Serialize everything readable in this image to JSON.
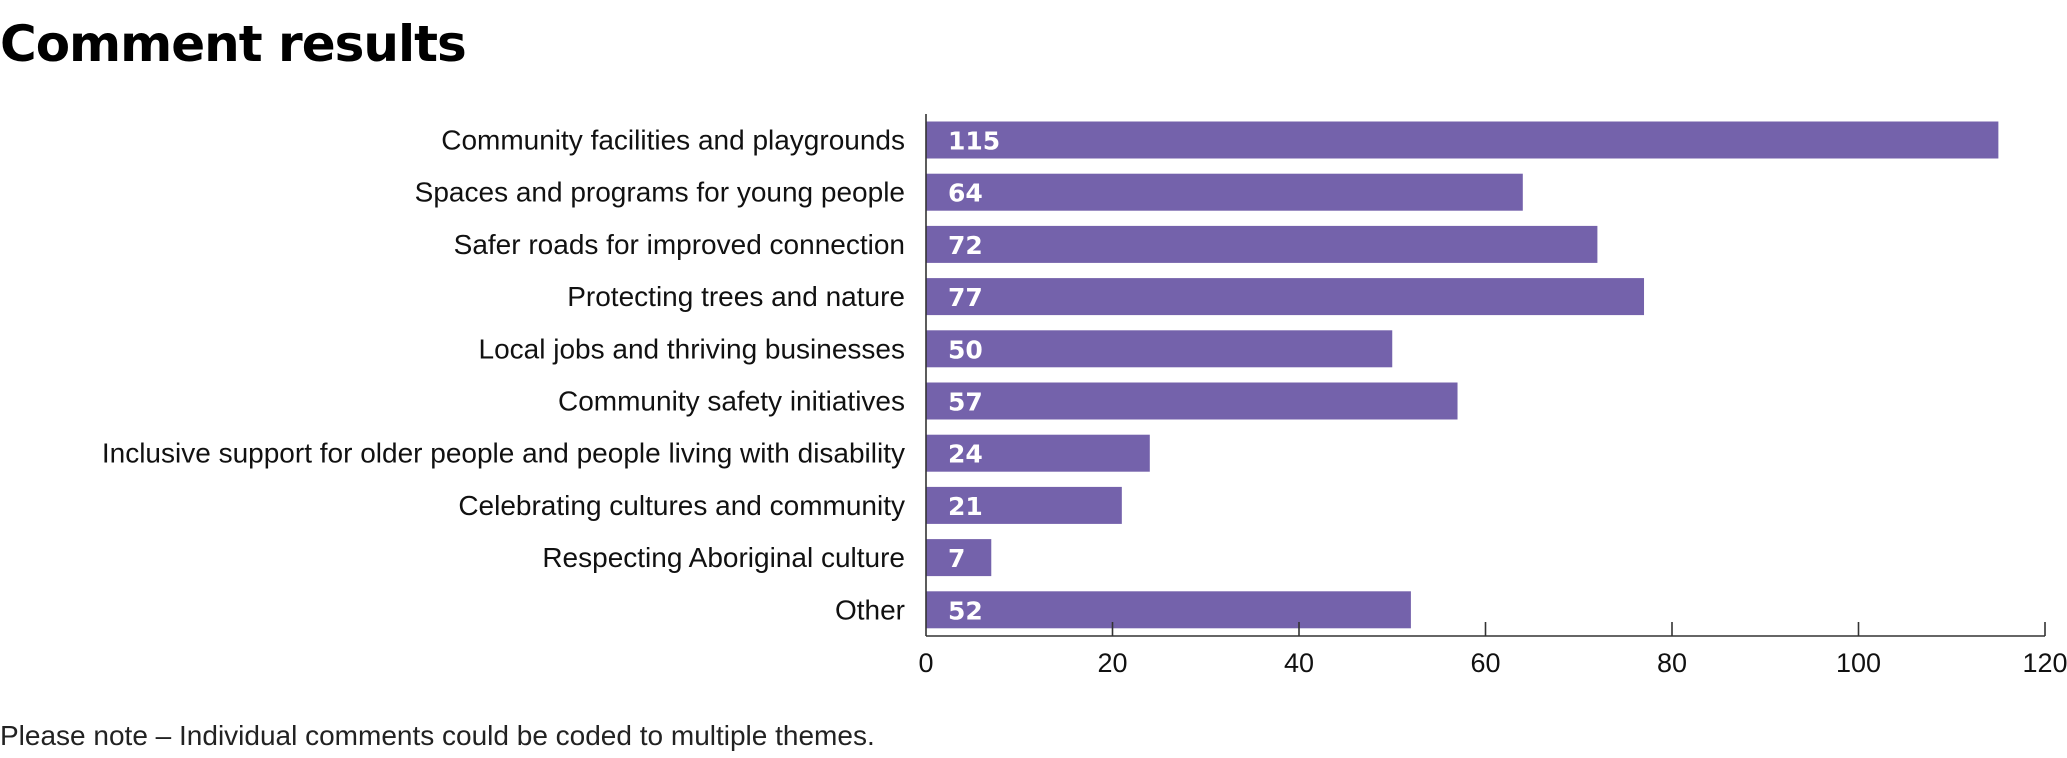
{
  "header": {
    "title": "Comment results"
  },
  "footer": {
    "note": "Please note – Individual comments could be coded to multiple themes."
  },
  "colors": {
    "bar": "#7462AB",
    "axis": "#333333"
  },
  "chart_data": {
    "type": "bar",
    "orientation": "horizontal",
    "categories": [
      "Community facilities and playgrounds",
      "Spaces and programs for young people",
      "Safer roads for improved connection",
      "Protecting trees and nature",
      "Local jobs and thriving businesses",
      "Community safety initiatives",
      "Inclusive support for older people and people living with disability",
      "Celebrating cultures and community",
      "Respecting Aboriginal culture",
      "Other"
    ],
    "values": [
      115,
      64,
      72,
      77,
      50,
      57,
      24,
      21,
      7,
      52
    ],
    "data_labels": [
      "115",
      "64",
      "72",
      "77",
      "50",
      "57",
      "24",
      "21",
      "7",
      "52"
    ],
    "xlim": [
      0,
      120
    ],
    "xticks": [
      0,
      20,
      40,
      60,
      80,
      100,
      120
    ],
    "xtick_labels": [
      "0",
      "20",
      "40",
      "60",
      "80",
      "100",
      "120"
    ],
    "grid": false,
    "legend": "none"
  }
}
